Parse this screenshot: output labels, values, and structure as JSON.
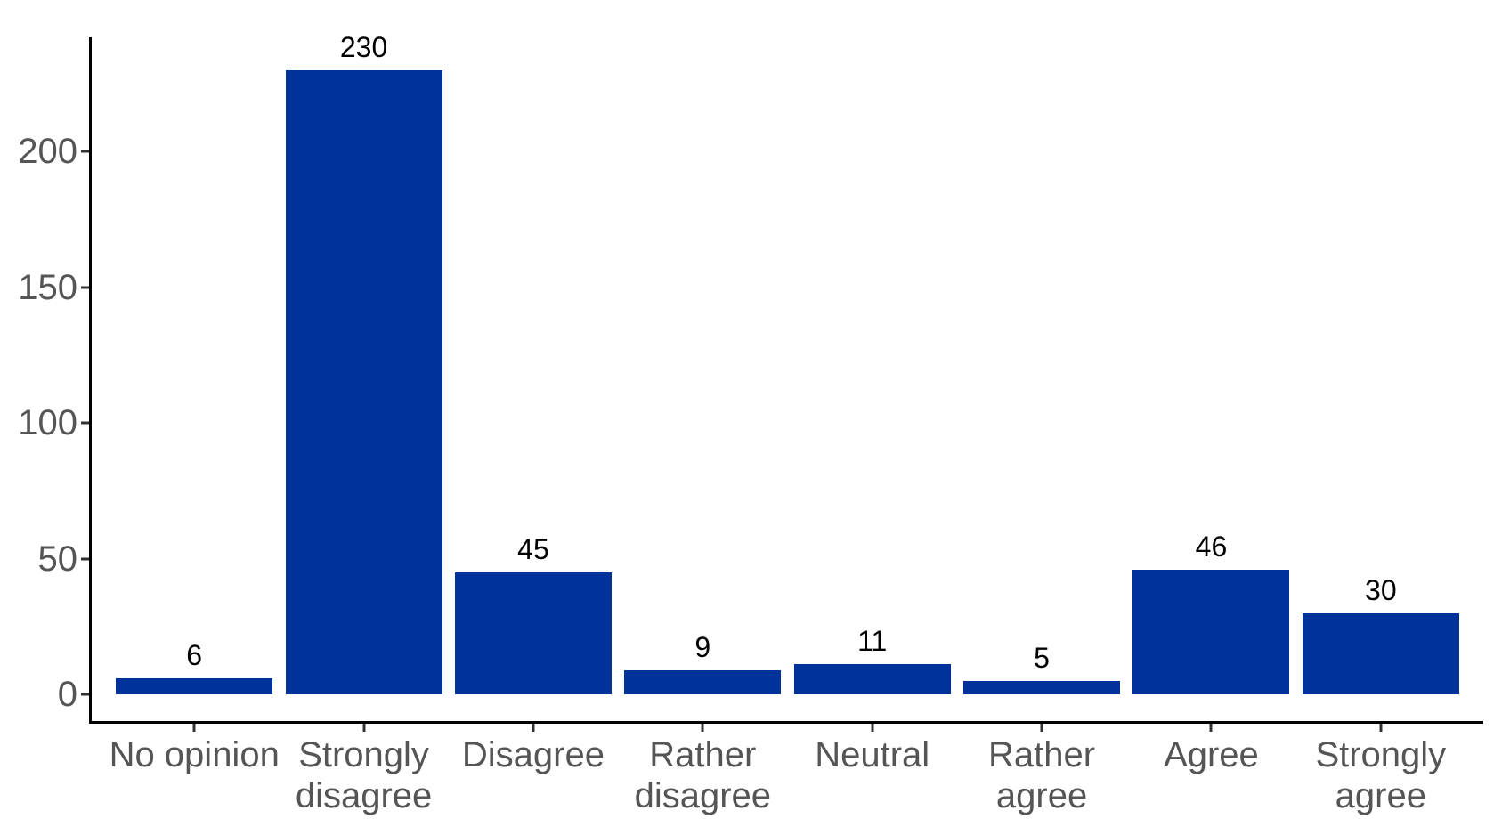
{
  "chart_data": {
    "type": "bar",
    "title": "",
    "xlabel": "",
    "ylabel": "",
    "categories": [
      "No opinion",
      "Strongly disagree",
      "Disagree",
      "Rather disagree",
      "Neutral",
      "Rather agree",
      "Agree",
      "Strongly agree"
    ],
    "categories_display": [
      "No opinion",
      "Strongly\ndisagree",
      "Disagree",
      "Rather\ndisagree",
      "Neutral",
      "Rather\nagree",
      "Agree",
      "Strongly\nagree"
    ],
    "values": [
      6,
      230,
      45,
      9,
      11,
      5,
      46,
      30
    ],
    "value_labels": [
      "6",
      "230",
      "45",
      "9",
      "11",
      "5",
      "46",
      "30"
    ],
    "yticks": [
      0,
      50,
      100,
      150,
      200
    ],
    "ylim": [
      0,
      240
    ],
    "grid": false,
    "legend": false,
    "colors": {
      "bar_fill": "#003399",
      "axis_line": "#000000",
      "tick_mark": "#333333",
      "tick_label": "#555555",
      "value_label": "#000000",
      "background": "#ffffff"
    }
  }
}
